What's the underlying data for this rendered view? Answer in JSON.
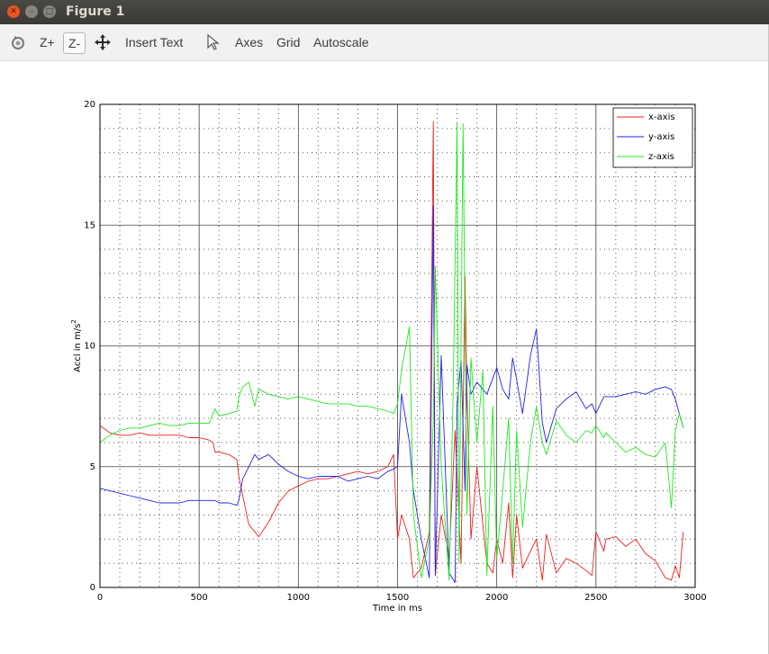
{
  "window": {
    "title": "Figure 1"
  },
  "toolbar": {
    "zoom_in": "Z+",
    "zoom_out": "Z-",
    "insert_text": "Insert Text",
    "axes": "Axes",
    "grid": "Grid",
    "autoscale": "Autoscale"
  },
  "icons": [
    "close-icon",
    "minimize-icon",
    "maximize-icon",
    "rotate-icon",
    "pan-icon",
    "select-pointer-icon"
  ],
  "chart_data": {
    "type": "line",
    "xlabel": "Time in ms",
    "ylabel": "Accl in m/s",
    "ylabel_superscript": "2",
    "xlim": [
      0,
      3000
    ],
    "ylim": [
      0,
      20
    ],
    "xticks": [
      0,
      500,
      1000,
      1500,
      2000,
      2500,
      3000
    ],
    "yticks": [
      0,
      5,
      10,
      15,
      20
    ],
    "grid": true,
    "minor_grid": true,
    "legend_position": "top-right",
    "series": [
      {
        "name": "x-axis",
        "color": "#e8211f",
        "x": [
          0,
          50,
          100,
          150,
          200,
          250,
          300,
          350,
          400,
          450,
          500,
          550,
          570,
          580,
          600,
          650,
          690,
          700,
          720,
          750,
          780,
          800,
          850,
          900,
          950,
          1000,
          1050,
          1100,
          1150,
          1200,
          1250,
          1300,
          1350,
          1400,
          1450,
          1480,
          1500,
          1520,
          1560,
          1580,
          1620,
          1660,
          1680,
          1690,
          1720,
          1760,
          1790,
          1820,
          1840,
          1850,
          1870,
          1900,
          1950,
          1980,
          2000,
          2030,
          2060,
          2080,
          2100,
          2130,
          2170,
          2200,
          2230,
          2250,
          2300,
          2350,
          2400,
          2450,
          2480,
          2500,
          2540,
          2550,
          2600,
          2650,
          2700,
          2750,
          2800,
          2850,
          2880,
          2900,
          2920,
          2940
        ],
        "y": [
          6.7,
          6.4,
          6.3,
          6.3,
          6.4,
          6.3,
          6.3,
          6.3,
          6.3,
          6.2,
          6.2,
          6.1,
          6.0,
          5.6,
          5.6,
          5.5,
          5.3,
          4.6,
          3.8,
          2.6,
          2.3,
          2.1,
          2.7,
          3.5,
          4.0,
          4.2,
          4.4,
          4.5,
          4.5,
          4.6,
          4.7,
          4.8,
          4.7,
          4.8,
          5.0,
          5.5,
          2.0,
          3.0,
          2.0,
          0.4,
          0.8,
          2.3,
          19.3,
          0.5,
          3.0,
          1.2,
          6.5,
          1.0,
          12.9,
          8.0,
          2.0,
          5.0,
          1.0,
          0.6,
          2.0,
          1.0,
          3.5,
          0.4,
          3.0,
          0.8,
          1.5,
          2.0,
          0.3,
          2.2,
          0.6,
          1.2,
          1.0,
          0.7,
          0.5,
          2.3,
          1.5,
          2.0,
          2.1,
          1.7,
          2.0,
          1.4,
          1.1,
          0.4,
          0.3,
          0.9,
          0.4,
          2.3
        ]
      },
      {
        "name": "y-axis",
        "color": "#2121e8",
        "x": [
          0,
          50,
          100,
          150,
          200,
          250,
          300,
          350,
          400,
          450,
          500,
          550,
          580,
          600,
          650,
          690,
          700,
          720,
          750,
          780,
          800,
          850,
          900,
          950,
          1000,
          1050,
          1100,
          1150,
          1200,
          1250,
          1300,
          1350,
          1400,
          1450,
          1480,
          1500,
          1520,
          1560,
          1580,
          1620,
          1660,
          1680,
          1690,
          1720,
          1760,
          1790,
          1800,
          1820,
          1840,
          1850,
          1870,
          1900,
          1950,
          2000,
          2030,
          2060,
          2080,
          2100,
          2130,
          2170,
          2200,
          2230,
          2250,
          2300,
          2350,
          2400,
          2450,
          2480,
          2500,
          2540,
          2550,
          2600,
          2650,
          2700,
          2750,
          2800,
          2850,
          2880,
          2900,
          2920,
          2940
        ],
        "y": [
          4.1,
          4.0,
          3.9,
          3.8,
          3.7,
          3.6,
          3.5,
          3.5,
          3.5,
          3.6,
          3.6,
          3.6,
          3.6,
          3.5,
          3.5,
          3.4,
          3.6,
          4.5,
          5.0,
          5.5,
          5.3,
          5.5,
          5.1,
          4.8,
          4.6,
          4.5,
          4.6,
          4.6,
          4.6,
          4.4,
          4.5,
          4.6,
          4.5,
          4.8,
          4.9,
          5.0,
          8.0,
          6.0,
          4.0,
          2.0,
          0.4,
          15.8,
          0.5,
          9.6,
          0.6,
          0.2,
          7.6,
          9.4,
          4.0,
          9.2,
          8.0,
          8.5,
          8.0,
          9.1,
          8.2,
          7.8,
          9.5,
          8.6,
          7.2,
          9.6,
          10.7,
          6.8,
          6.0,
          7.4,
          7.8,
          8.1,
          7.4,
          7.6,
          7.2,
          7.9,
          7.9,
          7.9,
          8.0,
          8.1,
          8.0,
          8.2,
          8.3,
          8.2,
          7.8,
          7.2,
          6.6
        ]
      },
      {
        "name": "z-axis",
        "color": "#21e821",
        "x": [
          0,
          50,
          100,
          150,
          200,
          250,
          300,
          350,
          400,
          450,
          500,
          550,
          580,
          600,
          650,
          690,
          700,
          720,
          750,
          780,
          800,
          850,
          900,
          950,
          1000,
          1050,
          1100,
          1150,
          1200,
          1250,
          1300,
          1350,
          1400,
          1450,
          1480,
          1500,
          1520,
          1560,
          1580,
          1620,
          1660,
          1680,
          1690,
          1720,
          1760,
          1780,
          1800,
          1810,
          1830,
          1850,
          1870,
          1900,
          1930,
          1950,
          1980,
          2000,
          2030,
          2060,
          2080,
          2100,
          2130,
          2170,
          2200,
          2230,
          2250,
          2300,
          2350,
          2400,
          2450,
          2480,
          2500,
          2540,
          2550,
          2600,
          2650,
          2700,
          2750,
          2800,
          2850,
          2880,
          2900,
          2920,
          2940
        ],
        "y": [
          6.0,
          6.3,
          6.5,
          6.6,
          6.6,
          6.7,
          6.8,
          6.7,
          6.7,
          6.8,
          6.8,
          6.8,
          7.4,
          7.1,
          7.2,
          7.3,
          7.9,
          8.3,
          8.5,
          7.5,
          8.2,
          8.0,
          7.9,
          7.8,
          7.9,
          7.8,
          7.7,
          7.6,
          7.6,
          7.6,
          7.5,
          7.5,
          7.4,
          7.3,
          7.2,
          7.6,
          9.0,
          10.8,
          3.0,
          0.4,
          2.0,
          7.0,
          13.3,
          5.0,
          0.3,
          8.0,
          19.2,
          1.0,
          19.2,
          3.0,
          9.5,
          6.0,
          9.0,
          0.5,
          7.5,
          1.2,
          4.0,
          7.0,
          1.0,
          6.5,
          2.5,
          6.0,
          7.5,
          6.0,
          5.5,
          6.9,
          6.3,
          6.0,
          6.5,
          6.4,
          6.7,
          6.2,
          6.4,
          6.0,
          5.6,
          5.8,
          5.5,
          5.4,
          6.0,
          3.3,
          6.5,
          7.2,
          6.6
        ]
      }
    ]
  }
}
